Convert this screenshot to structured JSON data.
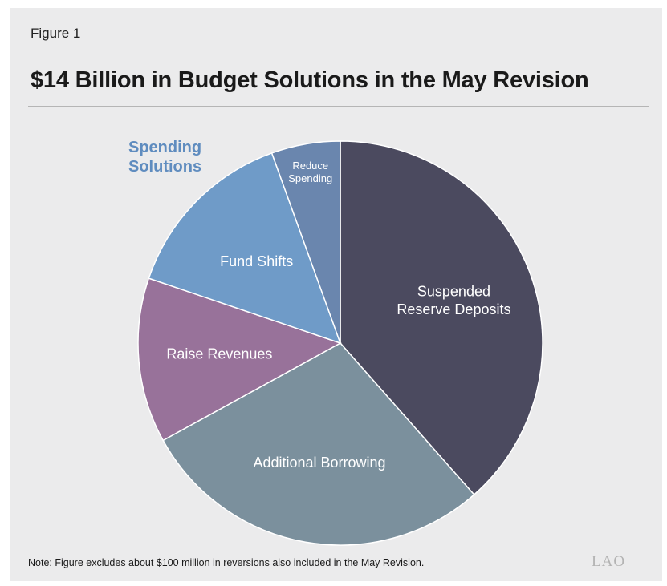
{
  "figure_label": "Figure 1",
  "title": "$14 Billion in Budget Solutions in the May Revision",
  "group_label": "Spending\nSolutions",
  "note": "Note: Figure excludes about $100 million in reversions also included in the May Revision.",
  "logo": "LAO",
  "chart_data": {
    "type": "pie",
    "title": "$14 Billion in Budget Solutions in the May Revision",
    "total": "$14 Billion",
    "slices": [
      {
        "label": "Suspended Reserve Deposits",
        "lines": [
          "Suspended",
          "Reserve Deposits"
        ],
        "value": 38.5,
        "color": "#4b4a5f"
      },
      {
        "label": "Additional Borrowing",
        "lines": [
          "Additional Borrowing"
        ],
        "value": 28.5,
        "color": "#7b909d"
      },
      {
        "label": "Raise Revenues",
        "lines": [
          "Raise Revenues"
        ],
        "value": 13.2,
        "color": "#98729a"
      },
      {
        "label": "Fund Shifts",
        "lines": [
          "Fund Shifts"
        ],
        "value": 14.3,
        "color": "#6f9bc8"
      },
      {
        "label": "Reduce Spending",
        "lines": [
          "Reduce",
          "Spending"
        ],
        "value": 5.5,
        "color": "#6a86ae"
      }
    ],
    "value_unit": "percent of total (estimated)",
    "group": {
      "label": "Spending Solutions",
      "slices": [
        "Fund Shifts",
        "Reduce Spending"
      ]
    }
  }
}
